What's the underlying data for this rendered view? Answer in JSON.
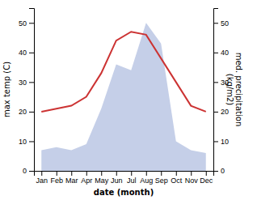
{
  "chart_data": {
    "type": "line",
    "categories": [
      "Jan",
      "Feb",
      "Mar",
      "Apr",
      "May",
      "Jun",
      "Jul",
      "Aug",
      "Sep",
      "Oct",
      "Nov",
      "Dec"
    ],
    "series": [
      {
        "type": "area",
        "color": "#c5cfe8",
        "axis": "y2",
        "values": [
          7,
          8,
          7,
          9,
          21,
          36,
          34,
          50,
          43,
          10,
          7,
          6
        ]
      },
      {
        "type": "line",
        "color": "#cc3333",
        "values": [
          20,
          21,
          22,
          25,
          33,
          44,
          47,
          46,
          38,
          30,
          22,
          20
        ]
      }
    ],
    "xlabel": "date (month)",
    "ylabel": "max temp (C)",
    "y2label": "med. precipitation\n(kg/m2)",
    "ylim": [
      0,
      55
    ],
    "yticks": [
      0,
      10,
      20,
      30,
      40,
      50
    ],
    "y2lim": [
      0,
      55
    ],
    "y2ticks": [
      0,
      10,
      20,
      30,
      40,
      50
    ],
    "grid": false
  }
}
